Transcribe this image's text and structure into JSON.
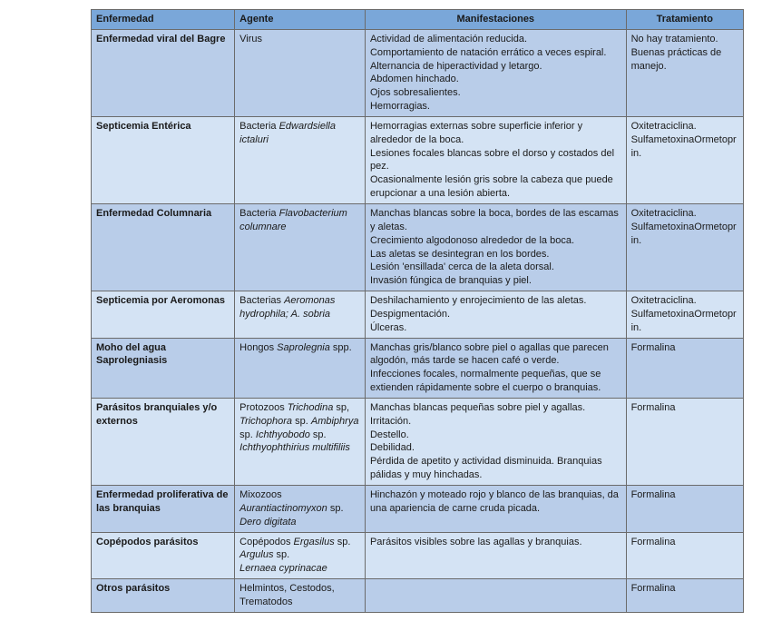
{
  "colors": {
    "header_bg": "#7aa7d9",
    "row_alt1": "#d4e3f4",
    "row_alt2": "#b9cde9",
    "border": "#6b6b6b",
    "text": "#1a1a1a"
  },
  "typography": {
    "font_family": "Arial",
    "body_size_pt": 8,
    "header_weight": "bold"
  },
  "table": {
    "type": "table",
    "columns": [
      {
        "key": "enfermedad",
        "label": "Enfermedad",
        "align": "left"
      },
      {
        "key": "agente",
        "label": "Agente",
        "align": "left"
      },
      {
        "key": "manifestaciones",
        "label": "Manifestaciones",
        "align": "center"
      },
      {
        "key": "tratamiento",
        "label": "Tratamiento",
        "align": "center"
      }
    ],
    "rows": [
      {
        "bg": "#b9cde9",
        "enfermedad": "Enfermedad viral del Bagre",
        "agente_plain": "Virus",
        "agente_italic": "",
        "manifestaciones": "Actividad de alimentación reducida.\nComportamiento de natación errático a veces espiral.\nAlternancia de hiperactividad y letargo.\nAbdomen hinchado.\nOjos sobresalientes.\nHemorragias.",
        "tratamiento": "No hay tratamiento. Buenas prácticas de manejo."
      },
      {
        "bg": "#d4e3f4",
        "enfermedad": "Septicemia Entérica",
        "agente_plain": "Bacteria ",
        "agente_italic": "Edwardsiella ictaluri",
        "manifestaciones": "Hemorragias externas sobre superficie inferior y alrededor de la boca.\nLesiones focales blancas sobre el dorso y costados del pez.\nOcasionalmente lesión gris sobre la cabeza que puede erupcionar a una lesión abierta.",
        "tratamiento": "Oxitetraciclina.\nSulfametoxinaOrmetoprin."
      },
      {
        "bg": "#b9cde9",
        "enfermedad": "Enfermedad Columnaria",
        "agente_plain": "Bacteria ",
        "agente_italic": "Flavobacterium columnare",
        "manifestaciones": "Manchas blancas sobre la boca, bordes de las escamas y aletas.\nCrecimiento algodonoso alrededor de la boca.\nLas aletas se desintegran en los bordes.\nLesión 'ensillada' cerca de la aleta dorsal.\nInvasión fúngica de branquias y piel.",
        "tratamiento": "Oxitetraciclina.\nSulfametoxinaOrmetoprin."
      },
      {
        "bg": "#d4e3f4",
        "enfermedad": "Septicemia por Aeromonas",
        "agente_plain": "Bacterias ",
        "agente_italic": "Aeromonas hydrophila; A. sobria",
        "manifestaciones": "Deshilachamiento y enrojecimiento de las aletas.\nDespigmentación.\nÚlceras.",
        "tratamiento": "Oxitetraciclina.\nSulfametoxinaOrmetoprin."
      },
      {
        "bg": "#b9cde9",
        "enfermedad": "Moho del agua Saprolegniasis",
        "agente_plain": "Hongos ",
        "agente_italic": "Saprolegnia",
        "agente_suffix": " spp.",
        "manifestaciones": "Manchas gris/blanco sobre piel o agallas que parecen algodón, más tarde se hacen café o verde.\nInfecciones focales, normalmente pequeñas, que se extienden rápidamente sobre el cuerpo o branquias.",
        "tratamiento": "Formalina"
      },
      {
        "bg": "#d4e3f4",
        "enfermedad": "Parásitos branquiales y/o externos",
        "agente_plain": "Protozoos ",
        "agente_multi": [
          {
            "italic": "Trichodina",
            "suffix": " sp, "
          },
          {
            "italic": "Trichophora",
            "suffix": " sp. "
          },
          {
            "italic": "Ambiphrya",
            "suffix": " sp. "
          },
          {
            "italic": "Ichthyobodo",
            "suffix": " sp. "
          },
          {
            "italic": "Ichthyophthirius multifiliis",
            "suffix": ""
          }
        ],
        "manifestaciones": "Manchas blancas pequeñas sobre piel y agallas.\nIrritación.\nDestello.\nDebilidad.\nPérdida de apetito y actividad disminuida. Branquias pálidas y muy hinchadas.",
        "tratamiento": "Formalina"
      },
      {
        "bg": "#b9cde9",
        "enfermedad": "Enfermedad proliferativa de las branquias",
        "agente_plain": "Mixozoos\n",
        "agente_multi": [
          {
            "italic": "Aurantiactinomyxon",
            "suffix": " sp.\n"
          },
          {
            "italic": "Dero digitata",
            "suffix": ""
          }
        ],
        "manifestaciones": "Hinchazón y moteado rojo y blanco de las branquias, da una apariencia de carne cruda picada.",
        "tratamiento": "Formalina"
      },
      {
        "bg": "#d4e3f4",
        "enfermedad": "Copépodos parásitos",
        "agente_plain": "Copépodos ",
        "agente_multi": [
          {
            "italic": "Ergasilus",
            "suffix": " sp. "
          },
          {
            "italic": "Argulus",
            "suffix": " sp.\n"
          },
          {
            "italic": "Lernaea cyprinacae",
            "suffix": ""
          }
        ],
        "manifestaciones": "Parásitos visibles sobre las agallas y branquias.",
        "tratamiento": "Formalina"
      },
      {
        "bg": "#b9cde9",
        "enfermedad": "Otros parásitos",
        "agente_plain": "Helmintos, Cestodos, Trematodos",
        "agente_italic": "",
        "manifestaciones": "",
        "tratamiento": "Formalina"
      }
    ]
  }
}
